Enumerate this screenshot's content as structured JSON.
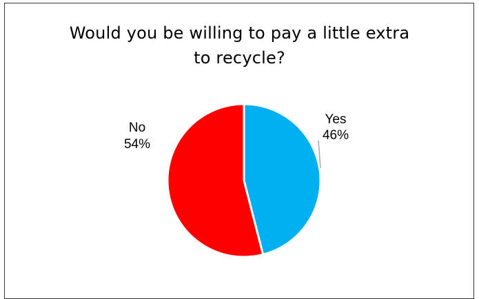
{
  "chart_data": {
    "type": "pie",
    "title_lines": [
      "Would you be willing to pay a little extra",
      "to recycle?"
    ],
    "categories": [
      "Yes",
      "No"
    ],
    "values": [
      46,
      54
    ],
    "value_labels": [
      "46%",
      "54%"
    ],
    "colors": [
      "#00b0f0",
      "#ff0000"
    ],
    "slice_border_color": "#ffffff",
    "leader_line_color": "#a6a6a6",
    "legend": "none",
    "labels": "outside-end category and percentage"
  }
}
